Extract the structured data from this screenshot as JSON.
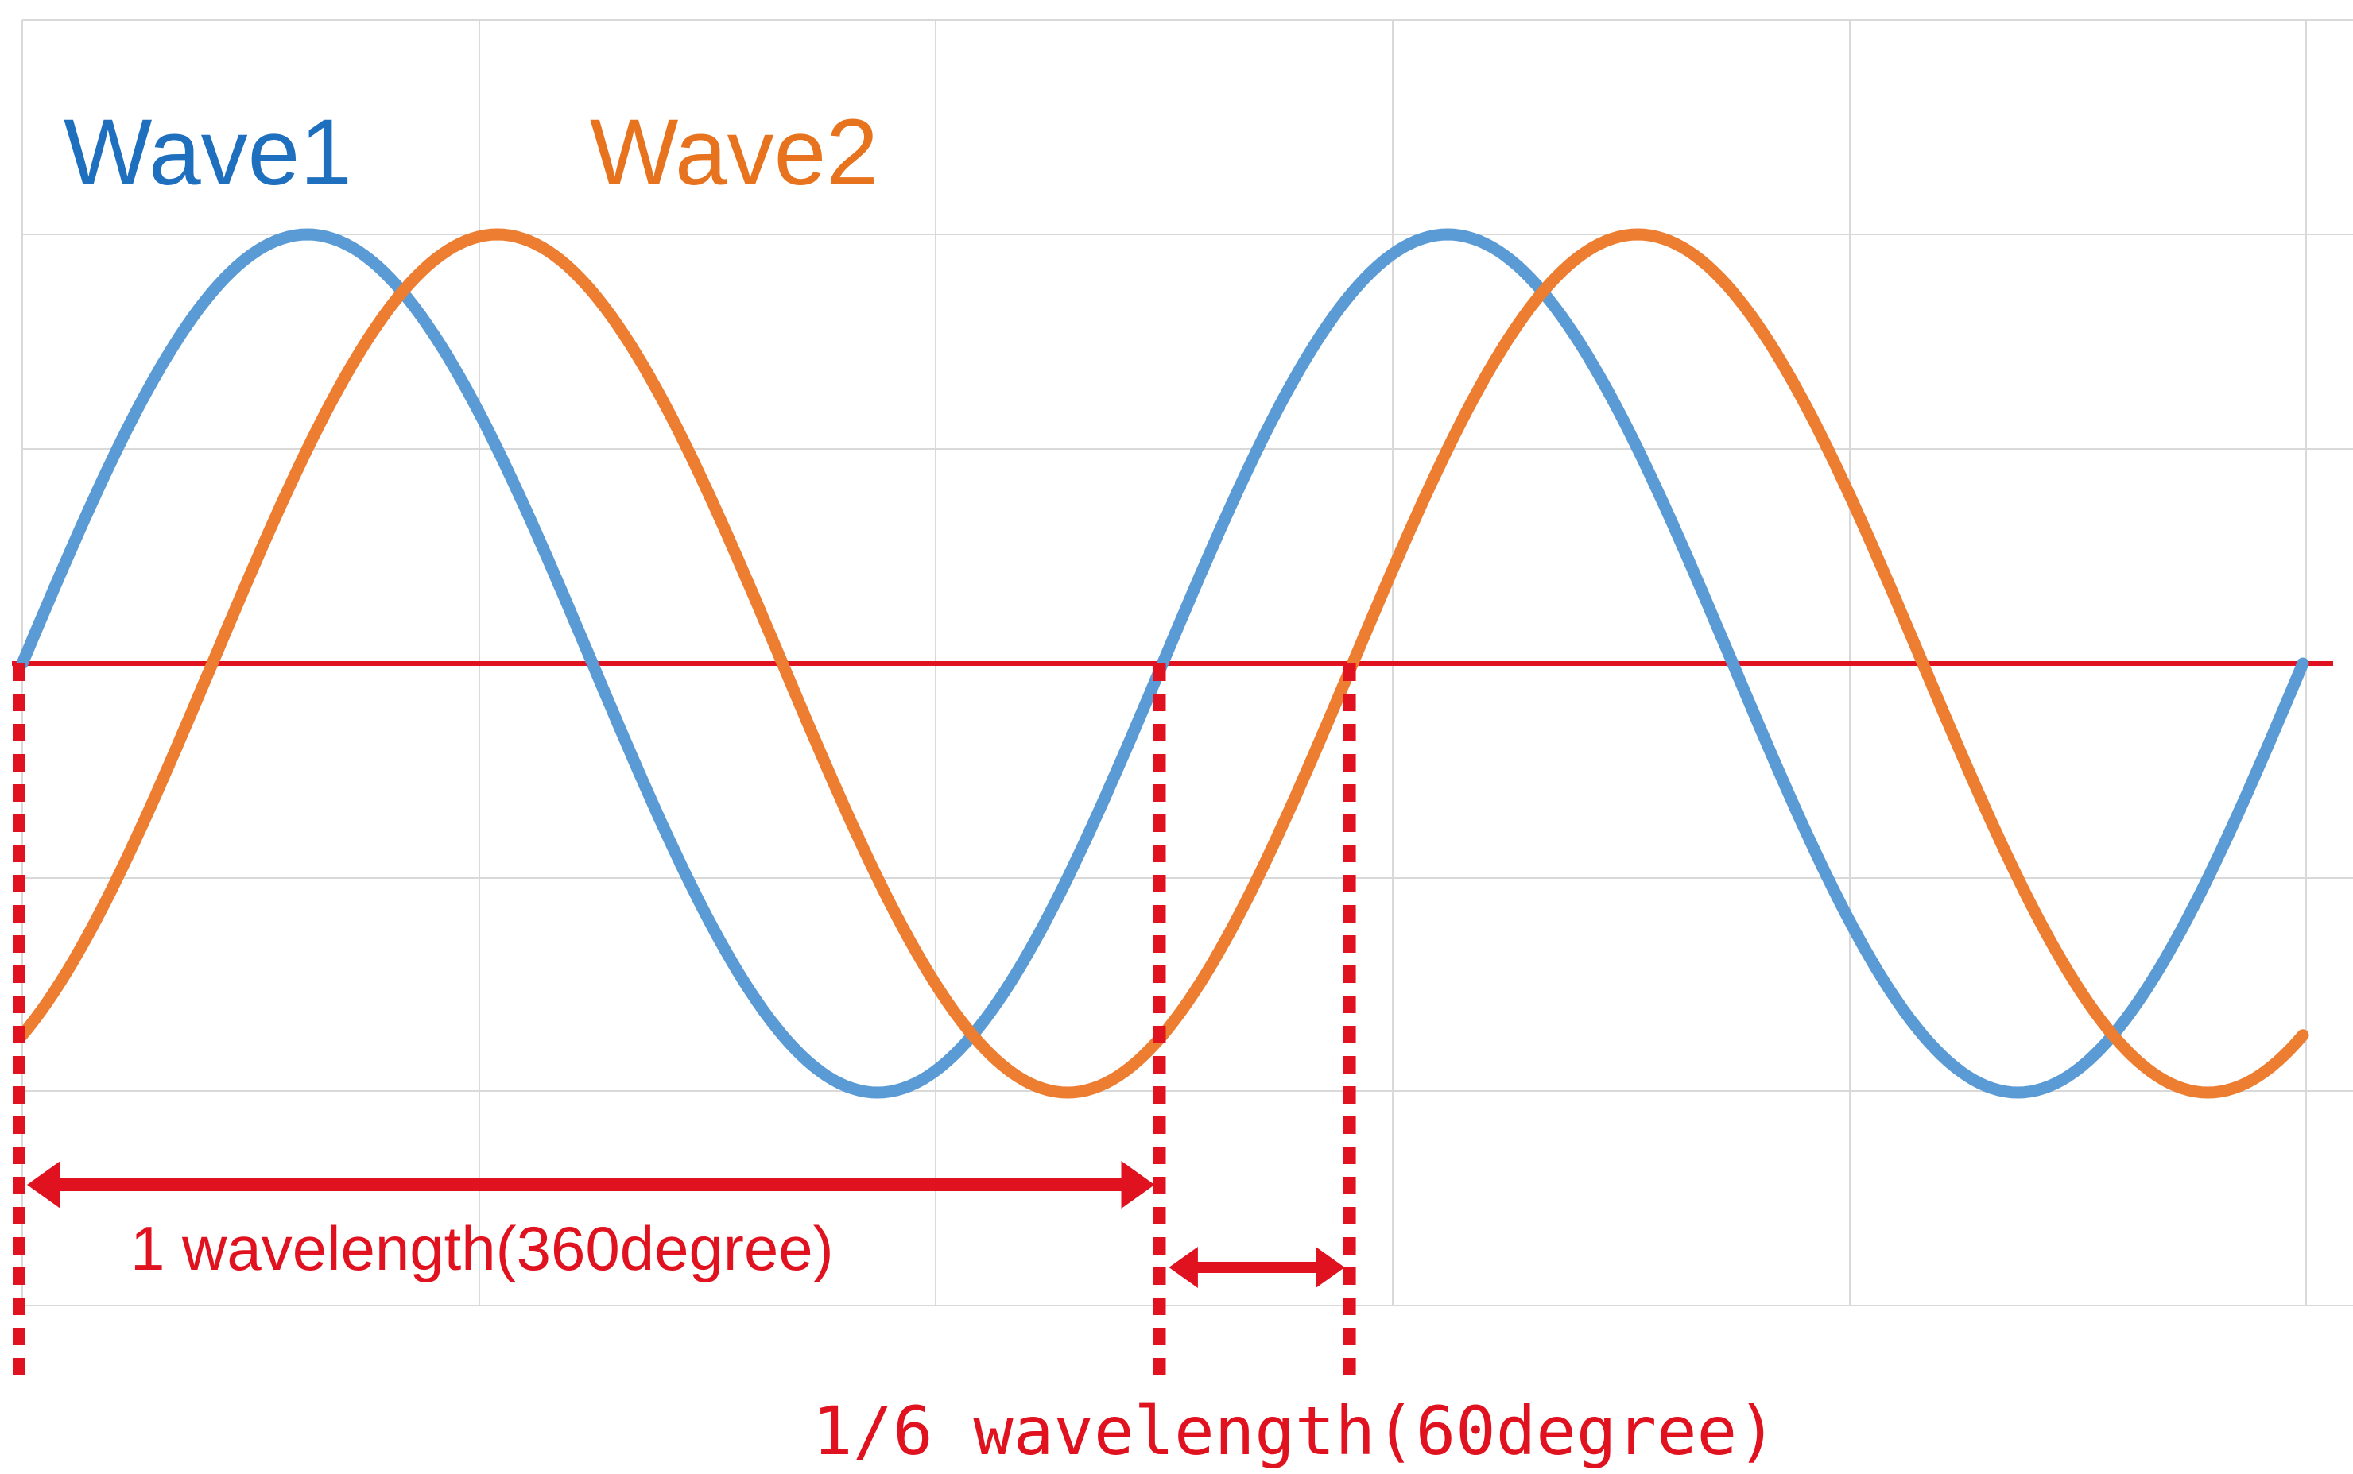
{
  "chart_data": {
    "type": "line",
    "title": "",
    "xlabel": "",
    "ylabel": "",
    "xlim": [
      0,
      720
    ],
    "ylim": [
      -1.0,
      1.0
    ],
    "grid": true,
    "x_unit": "degree",
    "series": [
      {
        "name": "Wave1",
        "color": "#5B9BD5",
        "label_color": "#1F6FBF",
        "function": "sin",
        "phase_offset_deg": 0,
        "x_range": [
          0,
          720
        ]
      },
      {
        "name": "Wave2",
        "color": "#ED7D31",
        "label_color": "#E8731E",
        "function": "sin",
        "phase_offset_deg": -60,
        "x_range": [
          0,
          720
        ]
      }
    ],
    "reference_line": {
      "y": 0,
      "color": "#E0121F"
    },
    "markers": [
      {
        "x": 0
      },
      {
        "x": 360
      },
      {
        "x": 420
      }
    ],
    "annotations": [
      {
        "id": "wavelength",
        "text": "1 wavelength(360degree)",
        "from": 0,
        "to": 360
      },
      {
        "id": "phase_shift",
        "text": "1/6 wavelength(60degree)",
        "from": 360,
        "to": 420
      }
    ],
    "accent_color": "#E0121F"
  }
}
